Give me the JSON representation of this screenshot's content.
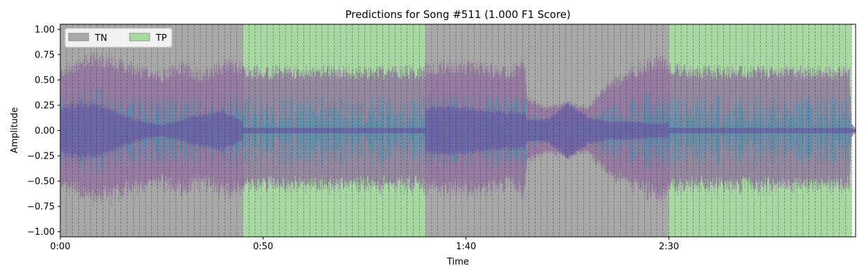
{
  "chart_data": {
    "type": "area",
    "title": "Predictions for Song #511 (1.000 F1 Score)",
    "xlabel": "Time",
    "ylabel": "Amplitude",
    "x_unit": "seconds",
    "xlim": [
      0,
      196
    ],
    "ylim": [
      -1.05,
      1.05
    ],
    "x_ticks": [
      {
        "value": 0,
        "label": "0:00"
      },
      {
        "value": 50,
        "label": "0:50"
      },
      {
        "value": 100,
        "label": "1:40"
      },
      {
        "value": 150,
        "label": "2:30"
      }
    ],
    "y_ticks": [
      {
        "value": 1.0,
        "label": "1.00"
      },
      {
        "value": 0.75,
        "label": "0.75"
      },
      {
        "value": 0.5,
        "label": "0.50"
      },
      {
        "value": 0.25,
        "label": "0.25"
      },
      {
        "value": 0.0,
        "label": "0.00"
      },
      {
        "value": -0.25,
        "label": "−0.25"
      },
      {
        "value": -0.5,
        "label": "−0.50"
      },
      {
        "value": -0.75,
        "label": "−0.75"
      },
      {
        "value": -1.0,
        "label": "−1.00"
      }
    ],
    "legend": {
      "placement": "top-left",
      "entries": [
        {
          "label": "TN",
          "color": "#a8a8a8"
        },
        {
          "label": "TP",
          "color": "#a9d9a3"
        }
      ]
    },
    "regions": [
      {
        "start": 0,
        "end": 45,
        "label": "TN"
      },
      {
        "start": 45,
        "end": 90,
        "label": "TP"
      },
      {
        "start": 90,
        "end": 150,
        "label": "TN"
      },
      {
        "start": 150,
        "end": 195,
        "label": "TP"
      }
    ],
    "beat_marker_interval": 1.5,
    "waveform_envelope": {
      "t": [
        0,
        5,
        10,
        15,
        20,
        25,
        30,
        35,
        40,
        44.9,
        45,
        50,
        55,
        60,
        65,
        70,
        75,
        80,
        85,
        89.9,
        90,
        95,
        100,
        105,
        110,
        114.5,
        115,
        120,
        125,
        130,
        135,
        140,
        145,
        149.9,
        150,
        155,
        160,
        165,
        170,
        175,
        180,
        185,
        190,
        194.5,
        195,
        196
      ],
      "outer": [
        0.65,
        0.75,
        0.8,
        0.72,
        0.65,
        0.6,
        0.7,
        0.6,
        0.7,
        0.7,
        0.65,
        0.65,
        0.65,
        0.65,
        0.65,
        0.65,
        0.65,
        0.65,
        0.65,
        0.65,
        0.7,
        0.7,
        0.7,
        0.68,
        0.65,
        0.72,
        0.35,
        0.25,
        0.3,
        0.25,
        0.5,
        0.6,
        0.75,
        0.75,
        0.7,
        0.65,
        0.65,
        0.65,
        0.65,
        0.65,
        0.65,
        0.65,
        0.65,
        0.65,
        0.08,
        0.02
      ],
      "inner": [
        0.25,
        0.3,
        0.28,
        0.18,
        0.1,
        0.06,
        0.12,
        0.18,
        0.22,
        0.1,
        0.03,
        0.03,
        0.03,
        0.03,
        0.03,
        0.03,
        0.03,
        0.03,
        0.03,
        0.03,
        0.25,
        0.25,
        0.25,
        0.22,
        0.2,
        0.2,
        0.12,
        0.12,
        0.3,
        0.15,
        0.1,
        0.1,
        0.08,
        0.08,
        0.03,
        0.03,
        0.03,
        0.03,
        0.03,
        0.03,
        0.03,
        0.03,
        0.03,
        0.03,
        0.02,
        0.01
      ]
    },
    "waveform_colors": {
      "outer": "#8e6c9c",
      "inner": "#6a5fa5",
      "overlay": "#1f95b8"
    },
    "grid": false
  }
}
